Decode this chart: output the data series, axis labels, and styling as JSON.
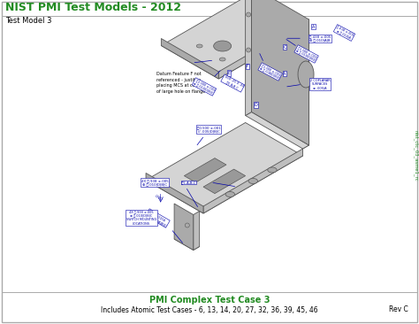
{
  "title": "NIST PMI Test Models - 2012",
  "subtitle": "Test Model 3",
  "footer_line1": "PMI Complex Test Case 3",
  "footer_line2": "Includes Atomic Test Cases - 6, 13, 14, 20, 27, 32, 36, 39, 45, 46",
  "footer_rev": "Rev C",
  "watermark": "nist_ctc_03_asme1_rc",
  "note_text": "Datum Feature F not\nreferenced - justifies\nplacing MCS at center\nof large hole on flange",
  "bg_color": "#ffffff",
  "border_color": "#aaaaaa",
  "title_color": "#228B22",
  "footer_color": "#228B22",
  "annotation_color": "#0000AA",
  "part_top": "#d4d4d4",
  "part_front": "#bebebe",
  "part_side": "#c8c8c8",
  "part_edge": "#555555",
  "part_dark": "#aaaaaa"
}
